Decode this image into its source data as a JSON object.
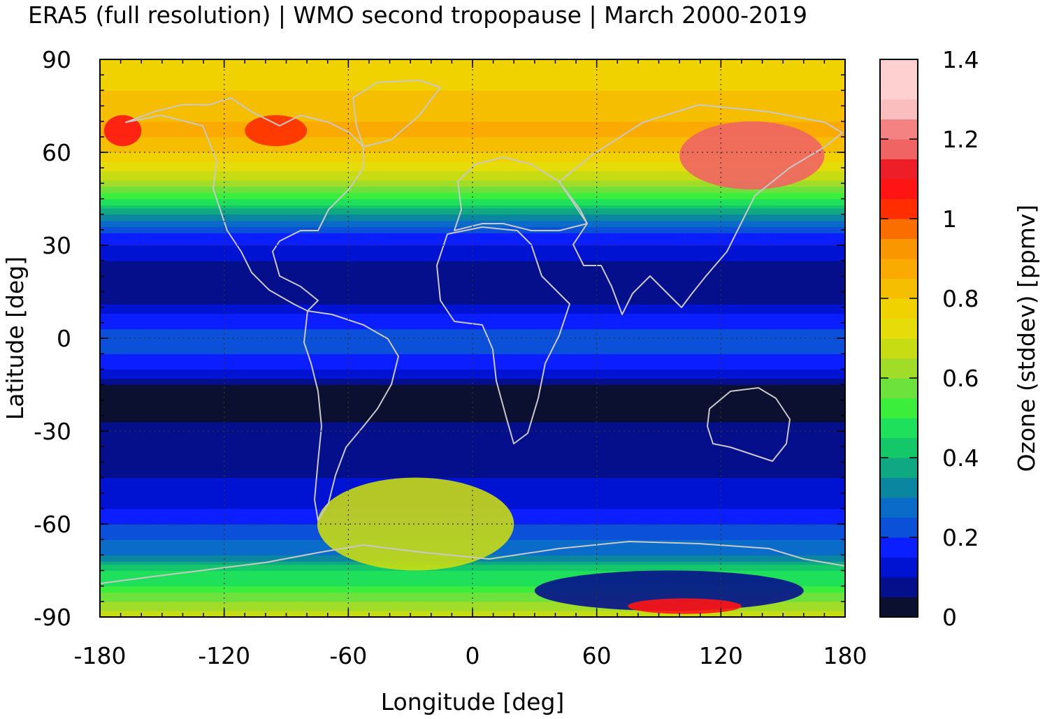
{
  "chart_data": {
    "type": "heatmap",
    "title": "ERA5 (full resolution) | WMO second tropopause | March 2000-2019",
    "xlabel": "Longitude [deg]",
    "ylabel": "Latitude [deg]",
    "colorbar_label": "Ozone (stddev) [ppmv]",
    "xlim": [
      -180,
      180
    ],
    "ylim": [
      -90,
      90
    ],
    "x_ticks": [
      -180,
      -120,
      -60,
      0,
      60,
      120,
      180
    ],
    "y_ticks": [
      -90,
      -60,
      -30,
      0,
      30,
      60,
      90
    ],
    "x_tick_labels": [
      "-180",
      "-120",
      "-60",
      "0",
      "60",
      "120",
      "180"
    ],
    "y_tick_labels": [
      "-90",
      "-60",
      "-30",
      "0",
      "30",
      "60",
      "90"
    ],
    "grid": true,
    "colorbar": {
      "range": [
        0,
        1.4
      ],
      "ticks": [
        0,
        0.2,
        0.4,
        0.6,
        0.8,
        1,
        1.2,
        1.4
      ],
      "tick_labels": [
        "0",
        "0.2",
        "0.4",
        "0.6",
        "0.8",
        "1",
        "1.2",
        "1.4"
      ],
      "levels": [
        {
          "from": 0.0,
          "to": 0.05,
          "color": "#0c1030"
        },
        {
          "from": 0.05,
          "to": 0.1,
          "color": "#050f8c"
        },
        {
          "from": 0.1,
          "to": 0.15,
          "color": "#0012d2"
        },
        {
          "from": 0.15,
          "to": 0.2,
          "color": "#0a1eff"
        },
        {
          "from": 0.2,
          "to": 0.25,
          "color": "#0a50d8"
        },
        {
          "from": 0.25,
          "to": 0.3,
          "color": "#0a6cc8"
        },
        {
          "from": 0.3,
          "to": 0.35,
          "color": "#0a86a0"
        },
        {
          "from": 0.35,
          "to": 0.4,
          "color": "#0fa882"
        },
        {
          "from": 0.4,
          "to": 0.45,
          "color": "#14c86a"
        },
        {
          "from": 0.45,
          "to": 0.5,
          "color": "#1ee05a"
        },
        {
          "from": 0.5,
          "to": 0.55,
          "color": "#3cee3c"
        },
        {
          "from": 0.55,
          "to": 0.6,
          "color": "#6ee23c"
        },
        {
          "from": 0.6,
          "to": 0.65,
          "color": "#a0dc28"
        },
        {
          "from": 0.65,
          "to": 0.7,
          "color": "#c8dc14"
        },
        {
          "from": 0.7,
          "to": 0.75,
          "color": "#e6dc0a"
        },
        {
          "from": 0.75,
          "to": 0.8,
          "color": "#f0d200"
        },
        {
          "from": 0.8,
          "to": 0.85,
          "color": "#f5be00"
        },
        {
          "from": 0.85,
          "to": 0.9,
          "color": "#faaa00"
        },
        {
          "from": 0.9,
          "to": 0.95,
          "color": "#fa9600"
        },
        {
          "from": 0.95,
          "to": 1.0,
          "color": "#fa6e00"
        },
        {
          "from": 1.0,
          "to": 1.05,
          "color": "#ff2d00"
        },
        {
          "from": 1.05,
          "to": 1.1,
          "color": "#ff1414"
        },
        {
          "from": 1.1,
          "to": 1.15,
          "color": "#ee1e28"
        },
        {
          "from": 1.15,
          "to": 1.2,
          "color": "#f06464"
        },
        {
          "from": 1.2,
          "to": 1.25,
          "color": "#f58282"
        },
        {
          "from": 1.25,
          "to": 1.3,
          "color": "#fabebe"
        },
        {
          "from": 1.3,
          "to": 1.4,
          "color": "#ffd0d0"
        }
      ]
    },
    "zonal_profile": {
      "lat": [
        -90,
        -85,
        -80,
        -75,
        -70,
        -65,
        -60,
        -55,
        -50,
        -45,
        -40,
        -35,
        -30,
        -25,
        -20,
        -15,
        -10,
        -5,
        0,
        5,
        10,
        15,
        20,
        25,
        30,
        35,
        40,
        45,
        50,
        55,
        60,
        65,
        70,
        75,
        80,
        85,
        90
      ],
      "value": [
        0.7,
        0.6,
        0.5,
        0.45,
        0.3,
        0.25,
        0.2,
        0.15,
        0.13,
        0.1,
        0.09,
        0.08,
        0.06,
        0.04,
        0.03,
        0.05,
        0.15,
        0.2,
        0.22,
        0.18,
        0.12,
        0.05,
        0.06,
        0.1,
        0.15,
        0.22,
        0.35,
        0.5,
        0.62,
        0.72,
        0.8,
        0.85,
        0.85,
        0.82,
        0.8,
        0.78,
        0.75
      ]
    },
    "features": [
      {
        "description": "maximum over East Siberia",
        "lon_range": [
          100,
          170
        ],
        "lat_range": [
          48,
          70
        ],
        "value": 1.15
      },
      {
        "description": "maximum over Alaska",
        "lon_range": [
          -178,
          -160
        ],
        "lat_range": [
          62,
          72
        ],
        "value": 1.05
      },
      {
        "description": "maximum over Canadian Arctic",
        "lon_range": [
          -110,
          -80
        ],
        "lat_range": [
          62,
          72
        ],
        "value": 1.0
      },
      {
        "description": "plume downstream of the southern Andes",
        "lon_range": [
          -75,
          20
        ],
        "lat_range": [
          -75,
          -45
        ],
        "value": 0.65
      },
      {
        "description": "Antarctic interior minimum",
        "lon_range": [
          30,
          160
        ],
        "lat_range": [
          -88,
          -75
        ],
        "value": 0.05
      },
      {
        "description": "Antarctic local maximum",
        "lon_range": [
          75,
          130
        ],
        "lat_range": [
          -89,
          -84
        ],
        "value": 1.05
      }
    ]
  }
}
